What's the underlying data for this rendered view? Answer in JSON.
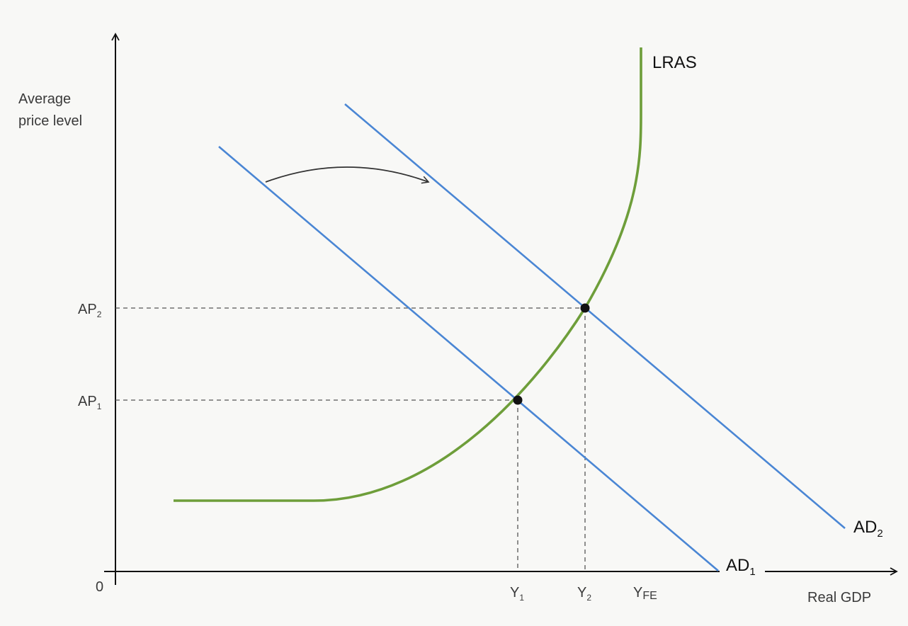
{
  "y_axis_label": {
    "line1": "Average",
    "line2": "price level"
  },
  "x_axis_label": "Real GDP",
  "origin_label": "0",
  "price_levels": [
    {
      "base": "AP",
      "sub": "1"
    },
    {
      "base": "AP",
      "sub": "2"
    }
  ],
  "output_levels": [
    {
      "base": "Y",
      "sub": "1"
    },
    {
      "base": "Y",
      "sub": "2"
    },
    {
      "base": "Y",
      "sub": "FE"
    }
  ],
  "curves": {
    "lras": {
      "label": "LRAS",
      "color": "#6e9e3a"
    },
    "ad1": {
      "base": "AD",
      "sub": "1",
      "color": "#4a86d4"
    },
    "ad2": {
      "base": "AD",
      "sub": "2",
      "color": "#4a86d4"
    }
  },
  "shift": {
    "from": "AD1",
    "to": "AD2",
    "direction": "right"
  },
  "colors": {
    "axis": "#111111",
    "guide": "#555555",
    "point": "#111111",
    "arrow": "#333333"
  }
}
